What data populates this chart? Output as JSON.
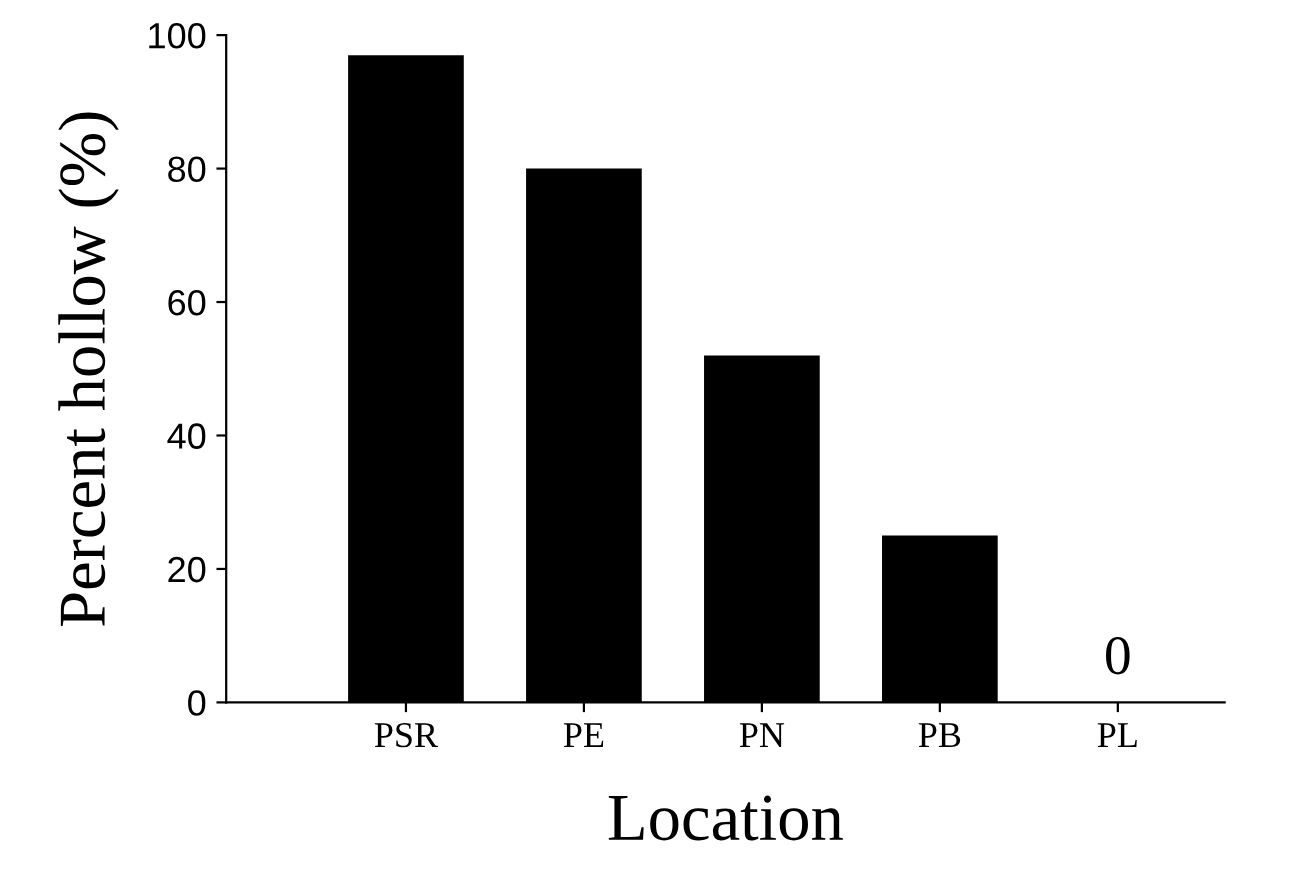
{
  "chart_data": {
    "type": "bar",
    "xlabel": "Location",
    "ylabel": "Percent hollow (%)",
    "categories": [
      "PSR",
      "PE",
      "PN",
      "PB",
      "PL"
    ],
    "values": [
      97,
      80,
      52,
      25,
      0
    ],
    "value_labels": [
      null,
      null,
      null,
      null,
      "0"
    ],
    "color": "#000000",
    "ylim": [
      0,
      100
    ],
    "yticks": [
      0,
      20,
      40,
      60,
      80,
      100
    ],
    "grid": false,
    "legend": false
  }
}
